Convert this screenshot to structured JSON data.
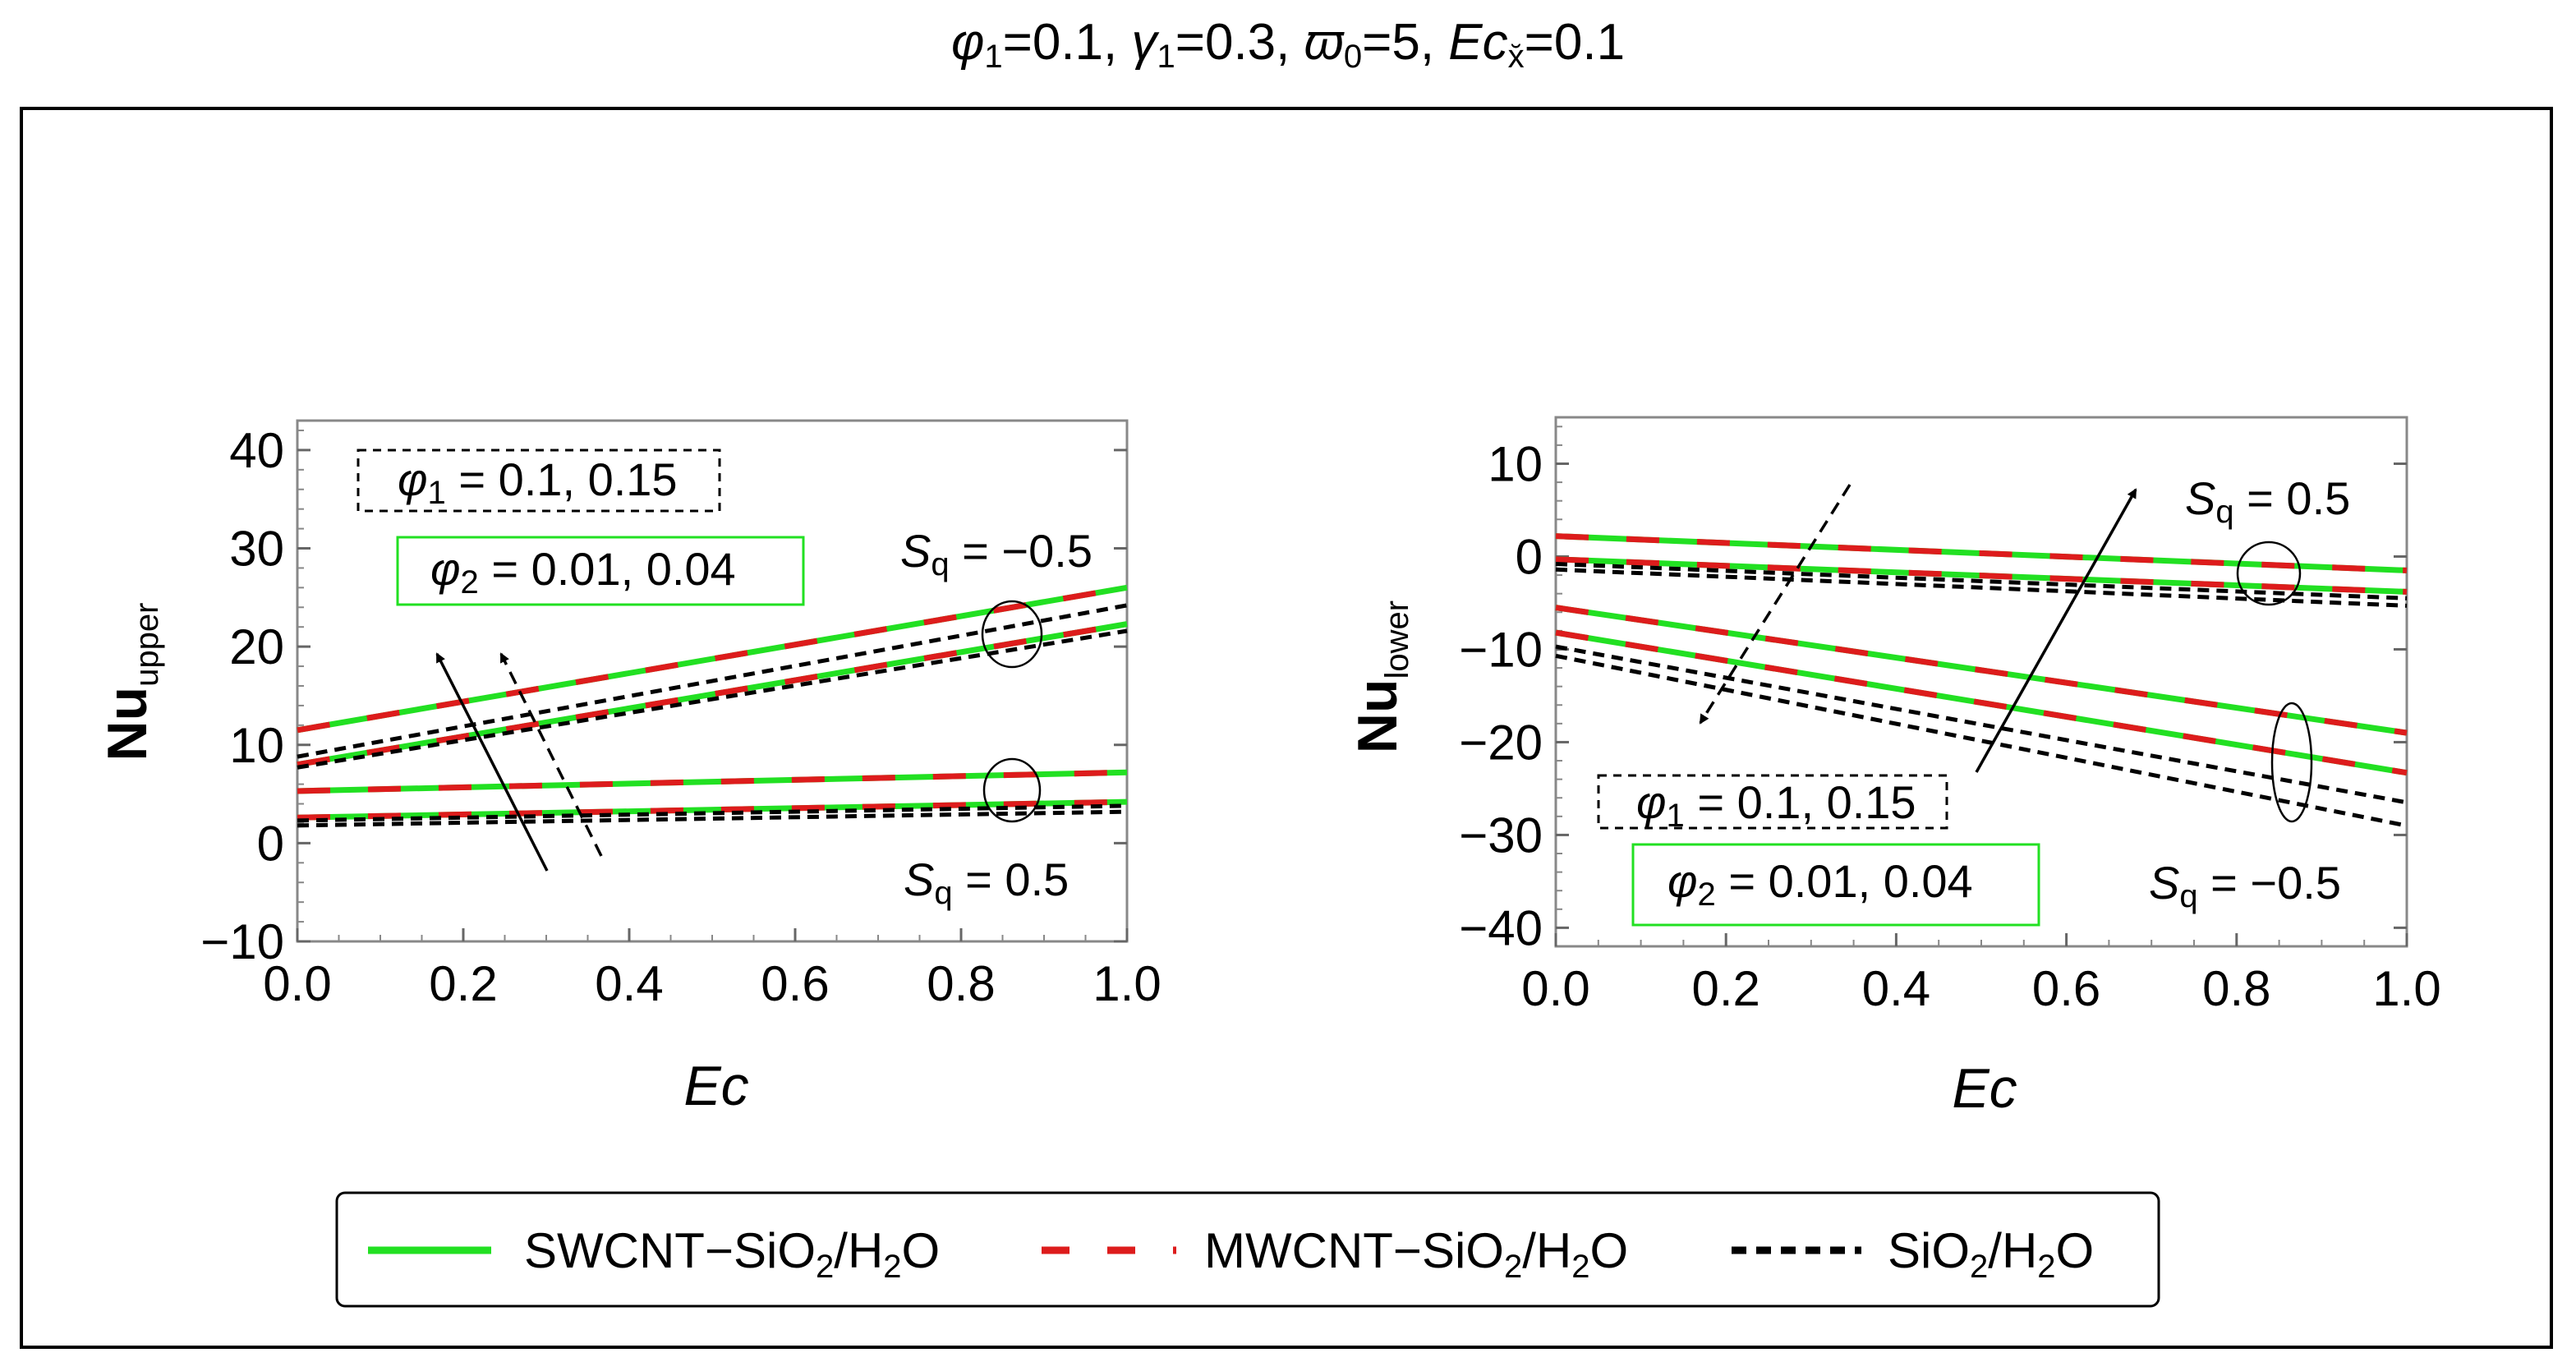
{
  "figure": {
    "title": {
      "phi1_sym": "φ",
      "phi1_sub": "1",
      "phi1_val": "=0.1, ",
      "gamma1_sym": "γ",
      "gamma1_sub": "1",
      "gamma1_val": "=0.3, ",
      "omega0_sym": "ϖ",
      "omega0_sub": "0",
      "omega0_val": "=5, ",
      "ec_sym": "Ec",
      "ec_sub": "x̆",
      "ec_val": "=0.1"
    },
    "legend": [
      {
        "label_pre": "SWCNT−SiO",
        "label_sub1": "2",
        "label_mid": "/H",
        "label_sub2": "2",
        "label_post": "O",
        "color": "#22e022",
        "style": "solid"
      },
      {
        "label_pre": "MWCNT−SiO",
        "label_sub1": "2",
        "label_mid": "/H",
        "label_sub2": "2",
        "label_post": "O",
        "color": "#dd1c1c",
        "style": "dashed"
      },
      {
        "label_pre": "SiO",
        "label_sub1": "2",
        "label_mid": "/H",
        "label_sub2": "2",
        "label_post": "O",
        "color": "#000000",
        "style": "dotted"
      }
    ]
  },
  "chart_data": [
    {
      "type": "line",
      "panel": "left",
      "xlabel": "Ec",
      "ylabel_main": "Nu",
      "ylabel_sub": "upper",
      "xlim": [
        0,
        1
      ],
      "ylim": [
        -10,
        43
      ],
      "xticks": [
        "0.0",
        "0.2",
        "0.4",
        "0.6",
        "0.8",
        "1.0"
      ],
      "yticks": [
        "40",
        "30",
        "20",
        "10",
        "0",
        "−10"
      ],
      "ytick_values": [
        40,
        30,
        20,
        10,
        0,
        -10
      ],
      "xtick_values": [
        0,
        0.2,
        0.4,
        0.6,
        0.8,
        1.0
      ],
      "x": [
        0,
        1
      ],
      "series": [
        {
          "name": "SWCNT−SiO2/H2O, Sq=−0.5, φ2=0.04",
          "color": "#22e022",
          "style": "solid",
          "values": [
            11.5,
            26.0
          ]
        },
        {
          "name": "SWCNT−SiO2/H2O, Sq=−0.5, φ2=0.01",
          "color": "#22e022",
          "style": "solid",
          "values": [
            8.0,
            22.3
          ]
        },
        {
          "name": "MWCNT−SiO2/H2O, Sq=−0.5, φ2=0.04",
          "color": "#dd1c1c",
          "style": "dashed",
          "values": [
            11.5,
            26.0
          ]
        },
        {
          "name": "MWCNT−SiO2/H2O, Sq=−0.5, φ2=0.01",
          "color": "#dd1c1c",
          "style": "dashed",
          "values": [
            8.0,
            22.3
          ]
        },
        {
          "name": "SiO2/H2O, Sq=−0.5, φ1=0.15",
          "color": "#000000",
          "style": "dotted",
          "values": [
            8.8,
            24.2
          ]
        },
        {
          "name": "SiO2/H2O, Sq=−0.5, φ1=0.1",
          "color": "#000000",
          "style": "dotted",
          "values": [
            7.7,
            21.6
          ]
        },
        {
          "name": "SWCNT−SiO2/H2O, Sq=0.5, φ2=0.04",
          "color": "#22e022",
          "style": "solid",
          "values": [
            5.3,
            7.2
          ]
        },
        {
          "name": "SWCNT−SiO2/H2O, Sq=0.5, φ2=0.01",
          "color": "#22e022",
          "style": "solid",
          "values": [
            2.6,
            4.2
          ]
        },
        {
          "name": "MWCNT−SiO2/H2O, Sq=0.5, φ2=0.04",
          "color": "#dd1c1c",
          "style": "dashed",
          "values": [
            5.3,
            7.2
          ]
        },
        {
          "name": "MWCNT−SiO2/H2O, Sq=0.5, φ2=0.01",
          "color": "#dd1c1c",
          "style": "dashed",
          "values": [
            2.6,
            4.2
          ]
        },
        {
          "name": "SiO2/H2O, Sq=0.5, φ1=0.15",
          "color": "#000000",
          "style": "dotted",
          "values": [
            2.3,
            3.8
          ]
        },
        {
          "name": "SiO2/H2O, Sq=0.5, φ1=0.1",
          "color": "#000000",
          "style": "dotted",
          "values": [
            1.8,
            3.2
          ]
        }
      ],
      "annotations": {
        "box1_sym": "φ",
        "box1_sub": "1",
        "box1_val": " = 0.1, 0.15",
        "box2_sym": "φ",
        "box2_sub": "2",
        "box2_val": " = 0.01, 0.04",
        "sq_a_sym": "S",
        "sq_a_sub": "q",
        "sq_a_val": " = −0.5",
        "sq_b_sym": "S",
        "sq_b_sub": "q",
        "sq_b_val": " = 0.5"
      }
    },
    {
      "type": "line",
      "panel": "right",
      "xlabel": "Ec",
      "ylabel_main": "Nu",
      "ylabel_sub": "lower",
      "xlim": [
        0,
        1
      ],
      "ylim": [
        -42,
        15
      ],
      "xticks": [
        "0.0",
        "0.2",
        "0.4",
        "0.6",
        "0.8",
        "1.0"
      ],
      "yticks": [
        "10",
        "0",
        "−10",
        "−20",
        "−30",
        "−40"
      ],
      "ytick_values": [
        10,
        0,
        -10,
        -20,
        -30,
        -40
      ],
      "xtick_values": [
        0,
        0.2,
        0.4,
        0.6,
        0.8,
        1.0
      ],
      "x": [
        0,
        1
      ],
      "series": [
        {
          "name": "SWCNT−SiO2/H2O, Sq=0.5, φ2=0.04",
          "color": "#22e022",
          "style": "solid",
          "values": [
            2.2,
            -1.5
          ]
        },
        {
          "name": "SWCNT−SiO2/H2O, Sq=0.5, φ2=0.01",
          "color": "#22e022",
          "style": "solid",
          "values": [
            -0.3,
            -3.8
          ]
        },
        {
          "name": "MWCNT−SiO2/H2O, Sq=0.5, φ2=0.04",
          "color": "#dd1c1c",
          "style": "dashed",
          "values": [
            2.2,
            -1.5
          ]
        },
        {
          "name": "MWCNT−SiO2/H2O, Sq=0.5, φ2=0.01",
          "color": "#dd1c1c",
          "style": "dashed",
          "values": [
            -0.3,
            -3.8
          ]
        },
        {
          "name": "SiO2/H2O, Sq=0.5, φ1=0.1",
          "color": "#000000",
          "style": "dotted",
          "values": [
            -0.8,
            -4.5
          ]
        },
        {
          "name": "SiO2/H2O, Sq=0.5, φ1=0.15",
          "color": "#000000",
          "style": "dotted",
          "values": [
            -1.4,
            -5.3
          ]
        },
        {
          "name": "SWCNT−SiO2/H2O, Sq=−0.5, φ2=0.04",
          "color": "#22e022",
          "style": "solid",
          "values": [
            -5.5,
            -19.0
          ]
        },
        {
          "name": "SWCNT−SiO2/H2O, Sq=−0.5, φ2=0.01",
          "color": "#22e022",
          "style": "solid",
          "values": [
            -8.2,
            -23.3
          ]
        },
        {
          "name": "MWCNT−SiO2/H2O, Sq=−0.5, φ2=0.04",
          "color": "#dd1c1c",
          "style": "dashed",
          "values": [
            -5.5,
            -19.0
          ]
        },
        {
          "name": "MWCNT−SiO2/H2O, Sq=−0.5, φ2=0.01",
          "color": "#dd1c1c",
          "style": "dashed",
          "values": [
            -8.2,
            -23.3
          ]
        },
        {
          "name": "SiO2/H2O, Sq=−0.5, φ1=0.1",
          "color": "#000000",
          "style": "dotted",
          "values": [
            -9.7,
            -26.5
          ]
        },
        {
          "name": "SiO2/H2O, Sq=−0.5, φ1=0.15",
          "color": "#000000",
          "style": "dotted",
          "values": [
            -10.7,
            -29.0
          ]
        }
      ],
      "annotations": {
        "box1_sym": "φ",
        "box1_sub": "1",
        "box1_val": " = 0.1, 0.15",
        "box2_sym": "φ",
        "box2_sub": "2",
        "box2_val": " = 0.01, 0.04",
        "sq_a_sym": "S",
        "sq_a_sub": "q",
        "sq_a_val": " = 0.5",
        "sq_b_sym": "S",
        "sq_b_sub": "q",
        "sq_b_val": " = −0.5"
      }
    }
  ]
}
